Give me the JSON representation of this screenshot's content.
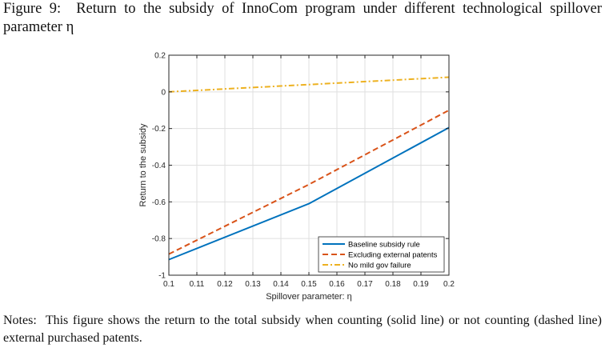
{
  "figure": {
    "caption_label": "Figure 9:",
    "caption_text": "Return to the subsidy of InnoCom program under different technological spillover parameter η",
    "notes_label": "Notes:",
    "notes_text": "This figure shows the return to the total subsidy when counting (solid line) or not counting (dashed line) external purchased patents."
  },
  "chart_data": {
    "type": "line",
    "title": "",
    "xlabel": "Spillover parameter: η",
    "ylabel": "Return to the subsidy",
    "xlim": [
      0.1,
      0.2
    ],
    "ylim": [
      -1,
      0.2
    ],
    "xticks": [
      0.1,
      0.11,
      0.12,
      0.13,
      0.14,
      0.15,
      0.16,
      0.17,
      0.18,
      0.19,
      0.2
    ],
    "xtick_labels": [
      "0.1",
      "0.11",
      "0.12",
      "0.13",
      "0.14",
      "0.15",
      "0.16",
      "0.17",
      "0.18",
      "0.19",
      "0.2"
    ],
    "yticks": [
      -1,
      -0.8,
      -0.6,
      -0.4,
      -0.2,
      0,
      0.2
    ],
    "ytick_labels": [
      "-1",
      "-0.8",
      "-0.6",
      "-0.4",
      "-0.2",
      "0",
      "0.2"
    ],
    "grid": true,
    "legend_position": "bottom-right",
    "series": [
      {
        "name": "Baseline subsidy rule",
        "style": "solid",
        "color": "#0072BD",
        "x": [
          0.1,
          0.15,
          0.2
        ],
        "y": [
          -0.915,
          -0.61,
          -0.195
        ]
      },
      {
        "name": "Excluding external patents",
        "style": "dashed",
        "color": "#D95319",
        "x": [
          0.1,
          0.15,
          0.2
        ],
        "y": [
          -0.885,
          -0.505,
          -0.1
        ]
      },
      {
        "name": "No mild gov failure",
        "style": "dashdot",
        "color": "#EDB120",
        "x": [
          0.1,
          0.15,
          0.2
        ],
        "y": [
          0.0,
          0.04,
          0.08
        ]
      }
    ]
  }
}
